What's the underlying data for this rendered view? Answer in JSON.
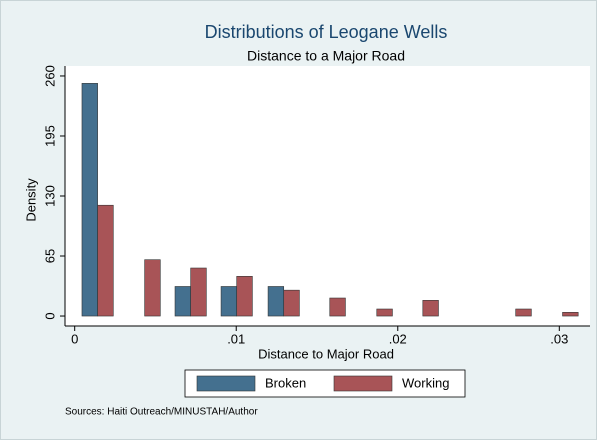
{
  "chart_data": {
    "type": "bar",
    "title": "Distributions of Leogane Wells",
    "subtitle": "Distance to a Major Road",
    "xlabel": "Distance to Major Road",
    "ylabel": "Density",
    "note": "Sources: Haiti Outreach/MINUSTAH/Author",
    "x": [
      0.00142,
      0.00433,
      0.00718,
      0.01003,
      0.01294,
      0.01579,
      0.0187,
      0.02155,
      0.0273,
      0.0302
    ],
    "series": [
      {
        "name": "Broken",
        "color": "#44708f",
        "values": [
          252,
          null,
          32,
          32,
          32,
          null,
          null,
          null,
          null,
          null
        ]
      },
      {
        "name": "Working",
        "color": "#a85457",
        "values": [
          120,
          61,
          52,
          43,
          28,
          19.5,
          7.6,
          17,
          7.6,
          4
        ]
      }
    ],
    "xlim": [
      -0.0006,
      0.0319
    ],
    "xticks": [
      0,
      {
        "value": 0.01,
        "label": ".01"
      },
      {
        "value": 0.02,
        "label": ".02"
      },
      {
        "value": 0.03,
        "label": ".03"
      }
    ],
    "ylim": [
      -10.8,
      270.8
    ],
    "yticks": [
      0,
      65,
      130,
      195,
      260
    ],
    "grid": false,
    "legend": "bottom"
  }
}
